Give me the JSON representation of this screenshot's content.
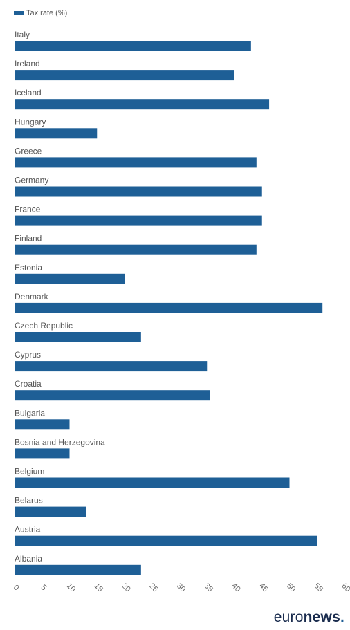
{
  "legend": {
    "label": "Tax rate (%)"
  },
  "logo": {
    "word_light": "euro",
    "word_bold": "news",
    "dot": "."
  },
  "colors": {
    "bar": "#1e5f96",
    "label": "#555555",
    "tick": "#666666",
    "logo": "#1a2c4e"
  },
  "chart_data": {
    "type": "bar",
    "orientation": "horizontal",
    "title": "",
    "xlabel": "",
    "ylabel": "",
    "xlim": [
      0,
      60
    ],
    "xticks": [
      0,
      5,
      10,
      15,
      20,
      25,
      30,
      35,
      40,
      45,
      50,
      55,
      60
    ],
    "grid": false,
    "legend_position": "top-left",
    "series": [
      {
        "name": "Tax rate (%)"
      }
    ],
    "categories": [
      "Italy",
      "Ireland",
      "Iceland",
      "Hungary",
      "Greece",
      "Germany",
      "France",
      "Finland",
      "Estonia",
      "Denmark",
      "Czech Republic",
      "Cyprus",
      "Croatia",
      "Bulgaria",
      "Bosnia and Herzegovina",
      "Belgium",
      "Belarus",
      "Austria",
      "Albania"
    ],
    "values": [
      43,
      40,
      46.3,
      15,
      44,
      45,
      45,
      44,
      20,
      56,
      23,
      35,
      35.5,
      10,
      10,
      50,
      13,
      55,
      23
    ]
  }
}
